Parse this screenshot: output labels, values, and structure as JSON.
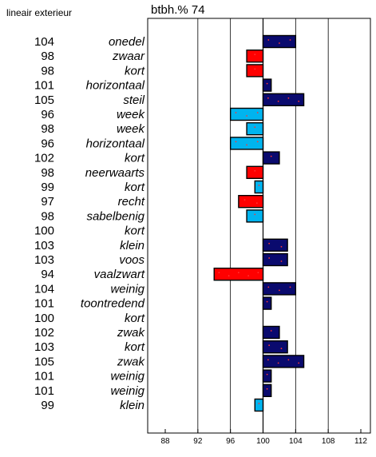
{
  "header": {
    "left_label": "lineair exterieur",
    "title": "btbh.% 74"
  },
  "chart_data": {
    "type": "bar",
    "baseline": 100,
    "xlim": [
      88,
      112
    ],
    "xticks": [
      88,
      92,
      96,
      100,
      104,
      108,
      112
    ],
    "gridlines": [
      92,
      96,
      104,
      108
    ],
    "colors": {
      "above": "#0a0a6e",
      "below_strong": "#ff0000",
      "below_mild": "#00b4ef",
      "dot": "#ff3333"
    },
    "rows": [
      {
        "value": 104,
        "label": "onedel"
      },
      {
        "value": 98,
        "label": "zwaar"
      },
      {
        "value": 98,
        "label": "kort"
      },
      {
        "value": 101,
        "label": "horizontaal"
      },
      {
        "value": 105,
        "label": "steil"
      },
      {
        "value": 96,
        "label": "week"
      },
      {
        "value": 98,
        "label": "week"
      },
      {
        "value": 96,
        "label": "horizontaal"
      },
      {
        "value": 102,
        "label": "kort"
      },
      {
        "value": 98,
        "label": "neerwaarts"
      },
      {
        "value": 99,
        "label": "kort"
      },
      {
        "value": 97,
        "label": "recht"
      },
      {
        "value": 98,
        "label": "sabelbenig"
      },
      {
        "value": 100,
        "label": "kort"
      },
      {
        "value": 103,
        "label": "klein"
      },
      {
        "value": 103,
        "label": "voos"
      },
      {
        "value": 94,
        "label": "vaalzwart"
      },
      {
        "value": 104,
        "label": "weinig"
      },
      {
        "value": 101,
        "label": "toontredend"
      },
      {
        "value": 100,
        "label": "kort"
      },
      {
        "value": 102,
        "label": "zwak"
      },
      {
        "value": 103,
        "label": "kort"
      },
      {
        "value": 105,
        "label": "zwak"
      },
      {
        "value": 101,
        "label": "weinig"
      },
      {
        "value": 101,
        "label": "weinig"
      },
      {
        "value": 99,
        "label": "klein"
      }
    ]
  }
}
